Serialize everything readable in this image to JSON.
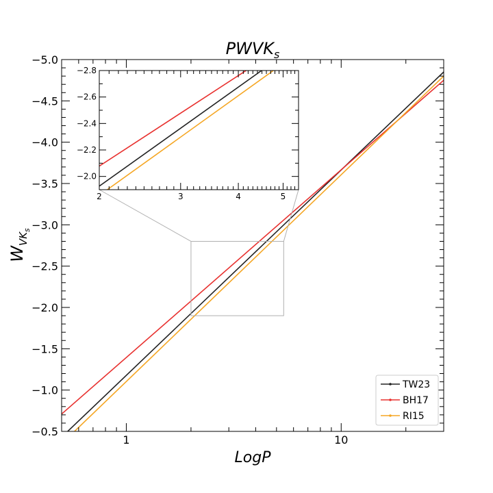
{
  "chart_data": {
    "type": "line",
    "title": "PWVK",
    "title_subscript": "s",
    "xlabel": "LogP",
    "ylabel": "W",
    "ylabel_subscript": "VK",
    "ylabel_subsubscript": "s",
    "xscale": "log",
    "xlim": [
      0.5,
      30
    ],
    "ylim": [
      -0.5,
      -5.0
    ],
    "y_inverted": true,
    "x_ticks": [
      1,
      10
    ],
    "x_tick_labels": [
      "1",
      "10"
    ],
    "y_ticks": [
      -5.0,
      -4.5,
      -4.0,
      -3.5,
      -3.0,
      -2.5,
      -2.0,
      -1.5,
      -1.0,
      -0.5
    ],
    "y_tick_labels": [
      "−5.0",
      "−4.5",
      "−4.0",
      "−3.5",
      "−3.0",
      "−2.5",
      "−2.0",
      "−1.5",
      "−1.0",
      "−0.5"
    ],
    "legend_position": "lower-right",
    "series": [
      {
        "name": "TW23",
        "color": "#222222",
        "x": [
          0.5,
          30
        ],
        "y": [
          -0.43,
          -4.85
        ]
      },
      {
        "name": "BH17",
        "color": "#e8312f",
        "x": [
          0.5,
          30
        ],
        "y": [
          -0.71,
          -4.75
        ]
      },
      {
        "name": "RI15",
        "color": "#f5a623",
        "x": [
          0.5,
          30
        ],
        "y": [
          -0.35,
          -4.8
        ]
      }
    ],
    "inset": {
      "xlim": [
        2,
        5.4
      ],
      "ylim": [
        -1.9,
        -2.8
      ],
      "x_ticks": [
        2,
        3,
        4,
        5
      ],
      "x_tick_labels": [
        "2",
        "3",
        "4",
        "5"
      ],
      "y_ticks": [
        -2.0,
        -2.2,
        -2.4,
        -2.6,
        -2.8
      ],
      "y_tick_labels": [
        "−2.0",
        "−2.2",
        "−2.4",
        "−2.6",
        "−2.8"
      ]
    }
  }
}
